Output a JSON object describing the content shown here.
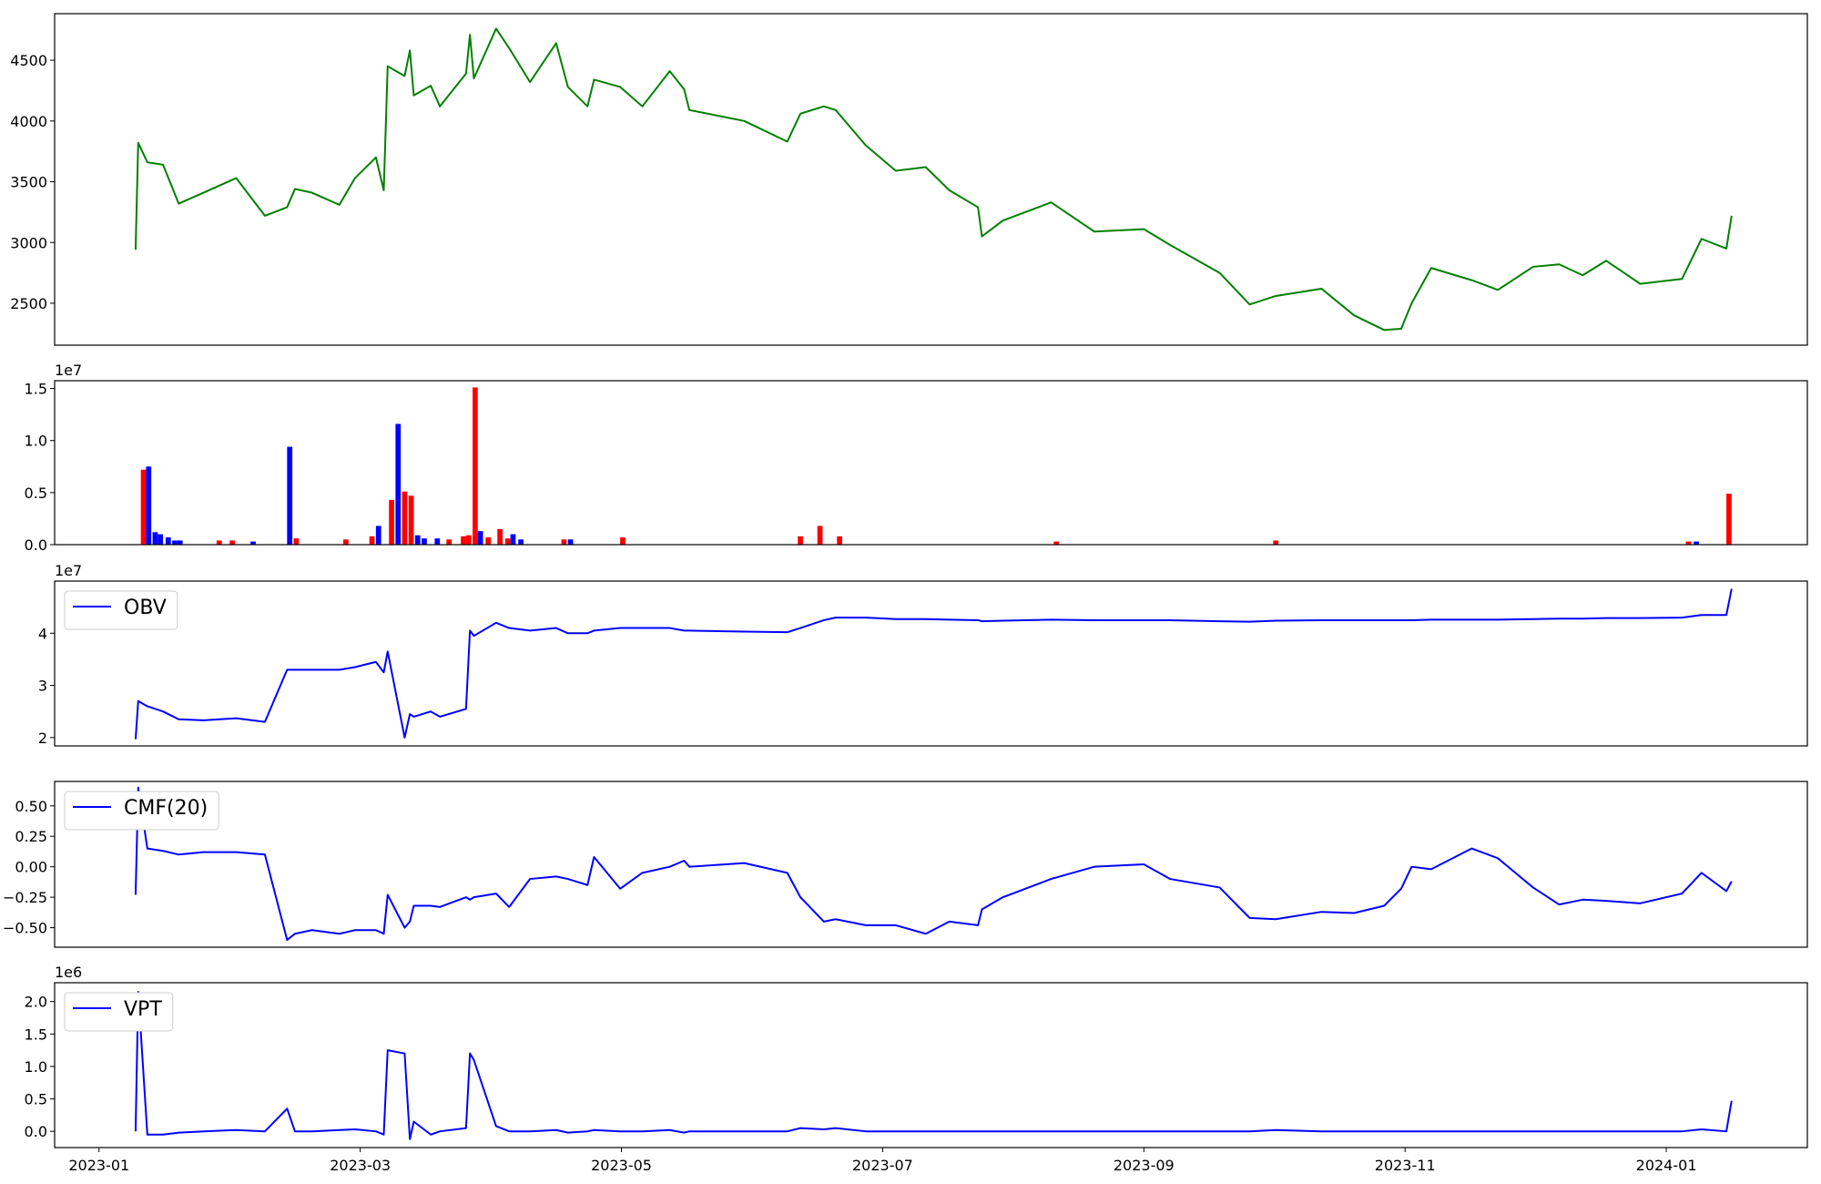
{
  "chart_data": [
    {
      "type": "line",
      "x": [
        0.28,
        0.3,
        0.37,
        0.49,
        0.61,
        0.8,
        1.05,
        1.27,
        1.44,
        1.5,
        1.63,
        1.84,
        1.96,
        2.12,
        2.18,
        2.21,
        2.34,
        2.38,
        2.41,
        2.54,
        2.61,
        2.81,
        2.84,
        2.87,
        3.04,
        3.14,
        3.3,
        3.5,
        3.59,
        3.74,
        3.79,
        3.99,
        4.16,
        4.37,
        4.48,
        4.52,
        4.94,
        5.27,
        5.37,
        5.55,
        5.64,
        5.87,
        6.1,
        6.33,
        6.51,
        6.73,
        6.76,
        6.92,
        7.29,
        7.62,
        8.0,
        8.2,
        8.58,
        8.81,
        9.01,
        9.36,
        9.61,
        9.84,
        9.97,
        10.05,
        10.2,
        10.51,
        10.71,
        10.98,
        11.18,
        11.36,
        11.54,
        11.8,
        12.12,
        12.27,
        12.46,
        12.5
      ],
      "series": [
        {
          "color": "#008000",
          "values": [
            2940,
            3820,
            3660,
            3640,
            3320,
            3410,
            3530,
            3220,
            3290,
            3440,
            3410,
            3310,
            3530,
            3700,
            3430,
            4450,
            4370,
            4580,
            4210,
            4290,
            4120,
            4390,
            4710,
            4350,
            4760,
            4600,
            4320,
            4640,
            4280,
            4120,
            4340,
            4280,
            4120,
            4410,
            4260,
            4090,
            4000,
            3830,
            4060,
            4120,
            4090,
            3800,
            3590,
            3620,
            3430,
            3290,
            3050,
            3180,
            3330,
            3090,
            3110,
            2980,
            2750,
            2490,
            2560,
            2620,
            2400,
            2280,
            2290,
            2500,
            2790,
            2690,
            2610,
            2800,
            2820,
            2730,
            2850,
            2660,
            2700,
            3030,
            2950,
            3220
          ]
        }
      ],
      "xlim": [
        -0.34,
        13.08
      ],
      "ylim": [
        2155,
        4883
      ],
      "yticks": [
        2500,
        3000,
        3500,
        4000,
        4500
      ]
    },
    {
      "type": "bar",
      "x": [
        0.34,
        0.38,
        0.43,
        0.47,
        0.53,
        0.58,
        0.62,
        0.92,
        1.02,
        1.18,
        1.46,
        1.51,
        1.89,
        2.09,
        2.14,
        2.24,
        2.29,
        2.34,
        2.39,
        2.44,
        2.49,
        2.59,
        2.68,
        2.79,
        2.83,
        2.88,
        2.92,
        2.98,
        3.07,
        3.13,
        3.17,
        3.23,
        3.56,
        3.61,
        4.01,
        5.37,
        5.52,
        5.67,
        7.33,
        9.01,
        12.17,
        12.23,
        12.48
      ],
      "values": [
        0.72,
        0.75,
        0.12,
        0.1,
        0.07,
        0.04,
        0.04,
        0.04,
        0.04,
        0.03,
        0.94,
        0.06,
        0.05,
        0.08,
        0.18,
        0.43,
        1.16,
        0.51,
        0.47,
        0.09,
        0.06,
        0.06,
        0.05,
        0.08,
        0.09,
        1.51,
        0.13,
        0.07,
        0.15,
        0.06,
        0.1,
        0.05,
        0.05,
        0.05,
        0.07,
        0.08,
        0.18,
        0.08,
        0.03,
        0.04,
        0.03,
        0.03,
        0.49
      ],
      "colors": [
        "#ff0000",
        "#0000ff",
        "#0000ff",
        "#0000ff",
        "#0000ff",
        "#0000ff",
        "#0000ff",
        "#ff0000",
        "#ff0000",
        "#0000ff",
        "#0000ff",
        "#ff0000",
        "#ff0000",
        "#ff0000",
        "#0000ff",
        "#ff0000",
        "#0000ff",
        "#ff0000",
        "#ff0000",
        "#0000ff",
        "#0000ff",
        "#0000ff",
        "#ff0000",
        "#ff0000",
        "#ff0000",
        "#ff0000",
        "#0000ff",
        "#ff0000",
        "#ff0000",
        "#ff0000",
        "#0000ff",
        "#0000ff",
        "#ff0000",
        "#0000ff",
        "#ff0000",
        "#ff0000",
        "#ff0000",
        "#ff0000",
        "#ff0000",
        "#ff0000",
        "#ff0000",
        "#0000ff",
        "#ff0000"
      ],
      "xlim": [
        -0.34,
        13.08
      ],
      "ylim": [
        0,
        1.575
      ],
      "yticks": [
        {
          "value": 0,
          "label": "0.0"
        },
        0.5,
        {
          "value": 1,
          "label": "1.0"
        },
        1.5
      ],
      "y_offset_label": "1e7"
    },
    {
      "type": "line",
      "x": [
        0.28,
        0.3,
        0.37,
        0.49,
        0.61,
        0.8,
        1.05,
        1.27,
        1.44,
        1.5,
        1.63,
        1.84,
        1.96,
        2.12,
        2.18,
        2.21,
        2.34,
        2.38,
        2.41,
        2.54,
        2.61,
        2.81,
        2.84,
        2.87,
        3.04,
        3.14,
        3.3,
        3.5,
        3.59,
        3.74,
        3.79,
        3.99,
        4.16,
        4.37,
        4.48,
        4.52,
        4.94,
        5.27,
        5.37,
        5.55,
        5.64,
        5.87,
        6.1,
        6.33,
        6.51,
        6.73,
        6.76,
        6.92,
        7.29,
        7.62,
        8.0,
        8.2,
        8.58,
        8.81,
        9.01,
        9.36,
        9.61,
        9.84,
        9.97,
        10.05,
        10.2,
        10.51,
        10.71,
        10.98,
        11.18,
        11.36,
        11.54,
        11.8,
        12.12,
        12.27,
        12.46,
        12.5
      ],
      "series": [
        {
          "name": "OBV",
          "color": "#0000ff",
          "values": [
            1.97,
            2.7,
            2.6,
            2.5,
            2.35,
            2.33,
            2.37,
            2.3,
            3.3,
            3.3,
            3.3,
            3.3,
            3.35,
            3.45,
            3.25,
            3.65,
            2.0,
            2.45,
            2.4,
            2.5,
            2.4,
            2.55,
            4.05,
            3.95,
            4.2,
            4.1,
            4.05,
            4.1,
            4.0,
            4.0,
            4.05,
            4.1,
            4.1,
            4.1,
            4.05,
            4.05,
            4.03,
            4.02,
            4.1,
            4.25,
            4.3,
            4.3,
            4.27,
            4.27,
            4.26,
            4.25,
            4.23,
            4.24,
            4.26,
            4.25,
            4.25,
            4.25,
            4.23,
            4.22,
            4.24,
            4.25,
            4.25,
            4.25,
            4.25,
            4.25,
            4.26,
            4.26,
            4.26,
            4.27,
            4.28,
            4.28,
            4.29,
            4.29,
            4.3,
            4.35,
            4.35,
            4.85
          ]
        }
      ],
      "xlim": [
        -0.34,
        13.08
      ],
      "ylim": [
        1.84,
        5.0
      ],
      "yticks": [
        2,
        3,
        4
      ],
      "y_offset_label": "1e7",
      "legend": "upper left"
    },
    {
      "type": "line",
      "x": [
        0.28,
        0.3,
        0.37,
        0.49,
        0.61,
        0.8,
        1.05,
        1.27,
        1.44,
        1.5,
        1.63,
        1.84,
        1.96,
        2.12,
        2.18,
        2.21,
        2.34,
        2.38,
        2.41,
        2.54,
        2.61,
        2.81,
        2.84,
        2.87,
        3.04,
        3.14,
        3.3,
        3.5,
        3.59,
        3.74,
        3.79,
        3.99,
        4.16,
        4.37,
        4.48,
        4.52,
        4.94,
        5.27,
        5.37,
        5.55,
        5.64,
        5.87,
        6.1,
        6.33,
        6.51,
        6.73,
        6.76,
        6.92,
        7.29,
        7.62,
        8.0,
        8.2,
        8.58,
        8.81,
        9.01,
        9.36,
        9.61,
        9.84,
        9.97,
        10.05,
        10.2,
        10.51,
        10.71,
        10.98,
        11.18,
        11.36,
        11.54,
        11.8,
        12.12,
        12.27,
        12.46,
        12.5
      ],
      "series": [
        {
          "name": "CMF(20)",
          "color": "#0000ff",
          "values": [
            -0.23,
            0.65,
            0.15,
            0.13,
            0.1,
            0.12,
            0.12,
            0.1,
            -0.6,
            -0.55,
            -0.52,
            -0.55,
            -0.52,
            -0.52,
            -0.55,
            -0.23,
            -0.5,
            -0.45,
            -0.32,
            -0.32,
            -0.33,
            -0.25,
            -0.27,
            -0.25,
            -0.22,
            -0.33,
            -0.1,
            -0.08,
            -0.1,
            -0.15,
            0.08,
            -0.18,
            -0.05,
            0.0,
            0.05,
            0.0,
            0.03,
            -0.05,
            -0.25,
            -0.45,
            -0.43,
            -0.48,
            -0.48,
            -0.55,
            -0.45,
            -0.48,
            -0.35,
            -0.25,
            -0.1,
            0.0,
            0.02,
            -0.1,
            -0.17,
            -0.42,
            -0.43,
            -0.37,
            -0.38,
            -0.32,
            -0.18,
            0.0,
            -0.02,
            0.15,
            0.07,
            -0.17,
            -0.31,
            -0.27,
            -0.28,
            -0.3,
            -0.22,
            -0.05,
            -0.2,
            -0.12
          ]
        }
      ],
      "xlim": [
        -0.34,
        13.08
      ],
      "ylim": [
        -0.66,
        0.7
      ],
      "yticks": [
        {
          "value": -0.5,
          "label": "−0.50"
        },
        {
          "value": -0.25,
          "label": "−0.25"
        },
        {
          "value": 0,
          "label": "0.00"
        },
        {
          "value": 0.25,
          "label": "0.25"
        },
        {
          "value": 0.5,
          "label": "0.50"
        }
      ],
      "legend": "upper left"
    },
    {
      "type": "line",
      "x": [
        0.28,
        0.3,
        0.37,
        0.49,
        0.61,
        0.8,
        1.05,
        1.27,
        1.44,
        1.5,
        1.63,
        1.84,
        1.96,
        2.12,
        2.18,
        2.21,
        2.34,
        2.38,
        2.41,
        2.54,
        2.61,
        2.81,
        2.84,
        2.87,
        3.04,
        3.14,
        3.3,
        3.5,
        3.59,
        3.74,
        3.79,
        3.99,
        4.16,
        4.37,
        4.48,
        4.52,
        4.94,
        5.27,
        5.37,
        5.55,
        5.64,
        5.87,
        6.1,
        6.33,
        6.51,
        6.73,
        6.76,
        6.92,
        7.29,
        7.62,
        8.0,
        8.2,
        8.58,
        8.81,
        9.01,
        9.36,
        9.61,
        9.84,
        9.97,
        10.05,
        10.2,
        10.51,
        10.71,
        10.98,
        11.18,
        11.36,
        11.54,
        11.8,
        12.12,
        12.27,
        12.46,
        12.5
      ],
      "series": [
        {
          "name": "VPT",
          "color": "#0000ff",
          "values": [
            0.0,
            2.15,
            -0.05,
            -0.05,
            -0.02,
            0.0,
            0.02,
            0.0,
            0.35,
            0.0,
            0.0,
            0.02,
            0.03,
            0.0,
            -0.05,
            1.25,
            1.2,
            -0.12,
            0.15,
            -0.05,
            0.0,
            0.05,
            1.2,
            1.1,
            0.08,
            0.0,
            0.0,
            0.02,
            -0.02,
            0.0,
            0.02,
            0.0,
            0.0,
            0.02,
            -0.02,
            0.0,
            0.0,
            0.0,
            0.05,
            0.03,
            0.05,
            0.0,
            0.0,
            0.0,
            0.0,
            0.0,
            0.0,
            0.0,
            0.0,
            0.0,
            0.0,
            0.0,
            0.0,
            0.0,
            0.02,
            0.0,
            0.0,
            0.0,
            0.0,
            0.0,
            0.0,
            0.0,
            0.0,
            0.0,
            0.0,
            0.0,
            0.0,
            0.0,
            0.0,
            0.03,
            0.0,
            0.47
          ]
        }
      ],
      "xlim": [
        -0.34,
        13.08
      ],
      "ylim": [
        -0.25,
        2.29
      ],
      "yticks": [
        {
          "value": 0,
          "label": "0.0"
        },
        0.5,
        {
          "value": 1,
          "label": "1.0"
        },
        1.5,
        {
          "value": 2,
          "label": "2.0"
        }
      ],
      "xticks": [
        {
          "value": 0,
          "label": "2023-01"
        },
        {
          "value": 2,
          "label": "2023-03"
        },
        {
          "value": 4,
          "label": "2023-05"
        },
        {
          "value": 6,
          "label": "2023-07"
        },
        {
          "value": 8,
          "label": "2023-09"
        },
        {
          "value": 10,
          "label": "2023-11"
        },
        {
          "value": 12,
          "label": "2024-01"
        }
      ],
      "y_offset_label": "1e6",
      "legend": "upper left"
    }
  ]
}
